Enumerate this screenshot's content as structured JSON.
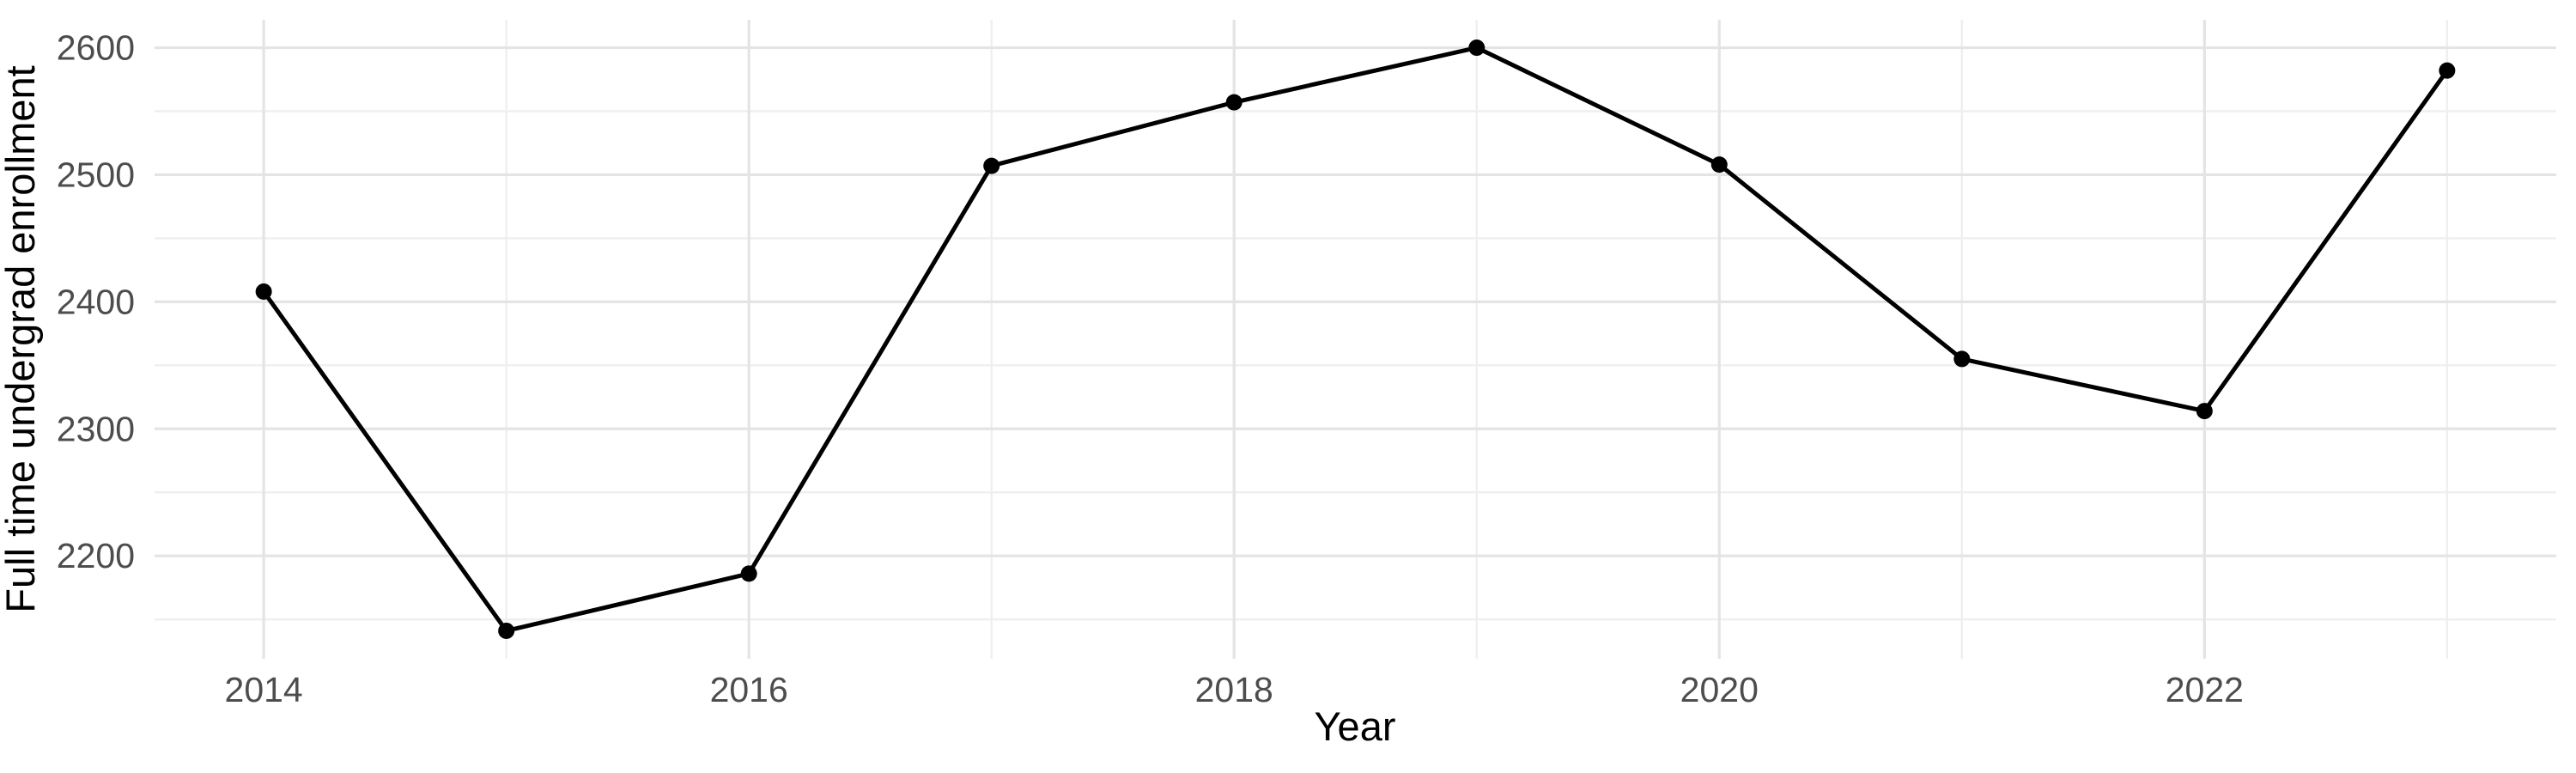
{
  "figure": {
    "background_color": "#ffffff"
  },
  "chart_data": {
    "type": "line",
    "title": "",
    "xlabel": "Year",
    "ylabel": "Full time undergrad enrollment",
    "x": [
      2014,
      2015,
      2016,
      2017,
      2018,
      2019,
      2020,
      2021,
      2022,
      2023
    ],
    "values": [
      2408,
      2141,
      2186,
      2507,
      2557,
      2600,
      2508,
      2355,
      2314,
      2582
    ],
    "series": [
      {
        "name": "Full time undergrad enrollment",
        "values": [
          2408,
          2141,
          2186,
          2507,
          2557,
          2600,
          2508,
          2355,
          2314,
          2582
        ]
      }
    ],
    "x_tick_labels": [
      "2014",
      "2016",
      "2018",
      "2020",
      "2022"
    ],
    "y_tick_labels": [
      "2200",
      "2300",
      "2400",
      "2500",
      "2600"
    ],
    "x_major_gridlines": [
      2014,
      2016,
      2018,
      2020,
      2022
    ],
    "x_minor_gridlines": [
      2015,
      2017,
      2019,
      2021,
      2023
    ],
    "y_major_gridlines": [
      2200,
      2300,
      2400,
      2500,
      2600
    ],
    "y_minor_gridlines": [
      2150,
      2250,
      2350,
      2450,
      2550
    ],
    "xlim": [
      2013.55,
      2023.45
    ],
    "ylim": [
      2119,
      2622
    ],
    "grid": "major-and-minor",
    "legend": "none",
    "line_color": "#000000",
    "point_color": "#000000",
    "major_grid_color": "#e4e4e4",
    "minor_grid_color": "#efefef",
    "tick_label_color": "#4d4d4d",
    "axis_title_color": "#000000"
  }
}
